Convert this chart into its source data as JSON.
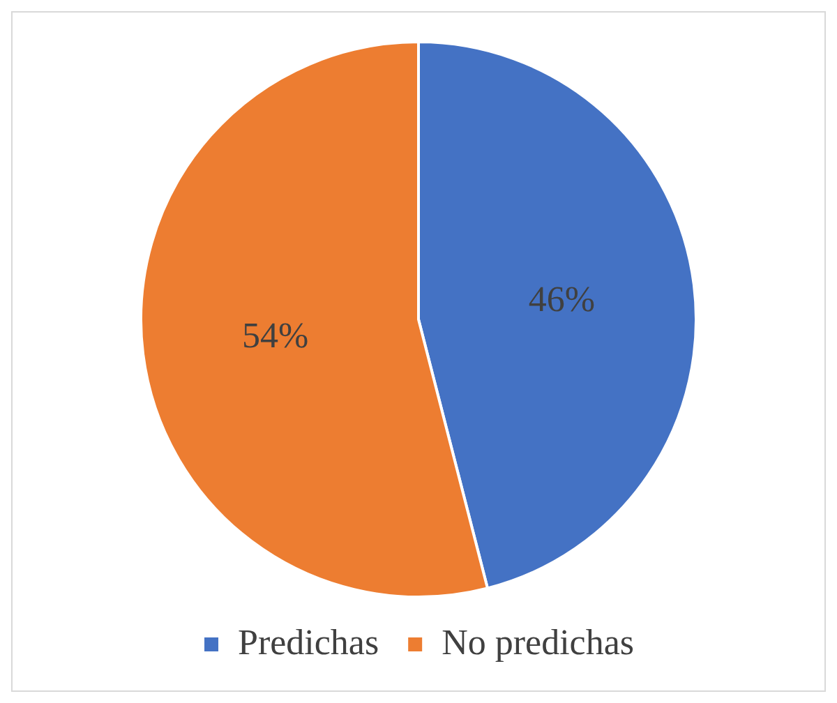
{
  "chart_data": {
    "type": "pie",
    "categories": [
      "Predichas",
      "No predichas"
    ],
    "values": [
      46,
      54
    ],
    "colors": [
      "#4472c4",
      "#ed7d31"
    ],
    "value_labels": [
      "46%",
      "54%"
    ],
    "legend": "bottom"
  }
}
